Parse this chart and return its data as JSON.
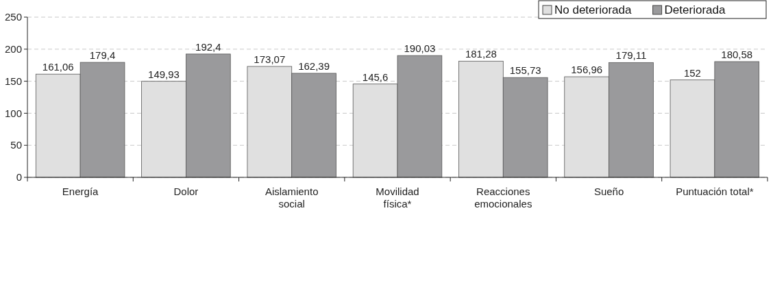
{
  "chart_data": {
    "type": "bar",
    "categories": [
      "Energía",
      "Dolor",
      "Aislamiento\nsocial",
      "Movilidad\nfísica*",
      "Reacciones\nemocionales",
      "Sueño",
      "Puntuación total*"
    ],
    "series": [
      {
        "name": "No deteriorada",
        "color": "#e0e0e0",
        "values": [
          161.06,
          149.93,
          173.07,
          145.6,
          181.28,
          156.96,
          152
        ],
        "value_labels": [
          "161,06",
          "149,93",
          "173,07",
          "145,6",
          "181,28",
          "156,96",
          "152"
        ]
      },
      {
        "name": "Deteriorada",
        "color": "#9a9a9c",
        "values": [
          179.4,
          192.4,
          162.39,
          190.03,
          155.73,
          179.11,
          180.58
        ],
        "value_labels": [
          "179,4",
          "192,4",
          "162,39",
          "190,03",
          "155,73",
          "179,11",
          "180,58"
        ]
      }
    ],
    "ylim": [
      0,
      250
    ],
    "yticks": [
      0,
      50,
      100,
      150,
      200,
      250
    ],
    "grid": "y",
    "legend": "top right"
  }
}
